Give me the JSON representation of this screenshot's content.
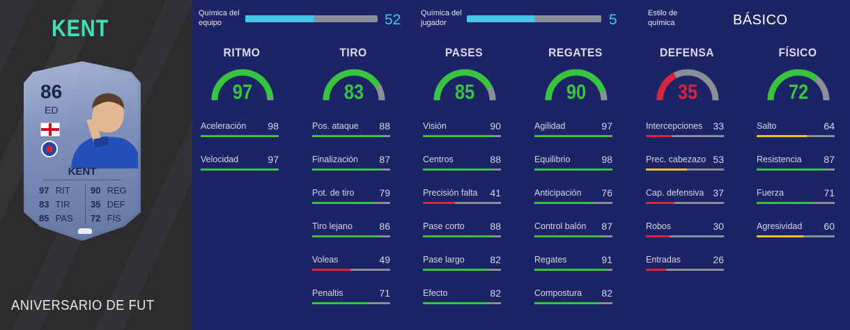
{
  "player": {
    "name": "KENT",
    "rating": "86",
    "position": "ED",
    "card_name": "KENT",
    "promo": "ANIVERSARIO DE FUT",
    "card_stats": [
      {
        "value": "97",
        "label": "RIT"
      },
      {
        "value": "83",
        "label": "TIR"
      },
      {
        "value": "85",
        "label": "PAS"
      },
      {
        "value": "90",
        "label": "REG"
      },
      {
        "value": "35",
        "label": "DEF"
      },
      {
        "value": "72",
        "label": "FÍS"
      }
    ]
  },
  "header": {
    "team_chem_label": "Química del equipo",
    "team_chem_value": 52,
    "team_chem_max": 100,
    "player_chem_label": "Química del jugador",
    "player_chem_value": 5,
    "player_chem_max": 10,
    "style_label": "Estilo de química",
    "style_value": "BÁSICO",
    "bar_color": "#43c6e8"
  },
  "colors": {
    "high": "#37c43e",
    "mid": "#f2bd2b",
    "low": "#d9243c",
    "track": "#8b8f99"
  },
  "categories": [
    {
      "title": "RITMO",
      "value": 97,
      "level": "high",
      "stats": [
        {
          "label": "Aceleración",
          "value": 98
        },
        {
          "label": "Velocidad",
          "value": 97
        }
      ]
    },
    {
      "title": "TIRO",
      "value": 83,
      "level": "high",
      "stats": [
        {
          "label": "Pos. ataque",
          "value": 88
        },
        {
          "label": "Finalización",
          "value": 87
        },
        {
          "label": "Pot. de tiro",
          "value": 79
        },
        {
          "label": "Tiro lejano",
          "value": 86
        },
        {
          "label": "Voleas",
          "value": 49
        },
        {
          "label": "Penaltis",
          "value": 71
        }
      ]
    },
    {
      "title": "PASES",
      "value": 85,
      "level": "high",
      "stats": [
        {
          "label": "Visión",
          "value": 90
        },
        {
          "label": "Centros",
          "value": 88
        },
        {
          "label": "Precisión falta",
          "value": 41
        },
        {
          "label": "Pase corto",
          "value": 88
        },
        {
          "label": "Pase largo",
          "value": 82
        },
        {
          "label": "Efecto",
          "value": 82
        }
      ]
    },
    {
      "title": "REGATES",
      "value": 90,
      "level": "high",
      "stats": [
        {
          "label": "Agilidad",
          "value": 97
        },
        {
          "label": "Equilibrio",
          "value": 98
        },
        {
          "label": "Anticipación",
          "value": 76
        },
        {
          "label": "Control balón",
          "value": 87
        },
        {
          "label": "Regates",
          "value": 91
        },
        {
          "label": "Compostura",
          "value": 82
        }
      ]
    },
    {
      "title": "DEFENSA",
      "value": 35,
      "level": "low",
      "stats": [
        {
          "label": "Intercepciones",
          "value": 33
        },
        {
          "label": "Prec. cabezazo",
          "value": 53
        },
        {
          "label": "Cap. defensiva",
          "value": 37
        },
        {
          "label": "Robos",
          "value": 30
        },
        {
          "label": "Entradas",
          "value": 26
        }
      ]
    },
    {
      "title": "FÍSICO",
      "value": 72,
      "level": "high",
      "stats": [
        {
          "label": "Salto",
          "value": 64
        },
        {
          "label": "Resistencia",
          "value": 87
        },
        {
          "label": "Fuerza",
          "value": 71
        },
        {
          "label": "Agresividad",
          "value": 60
        }
      ]
    }
  ]
}
